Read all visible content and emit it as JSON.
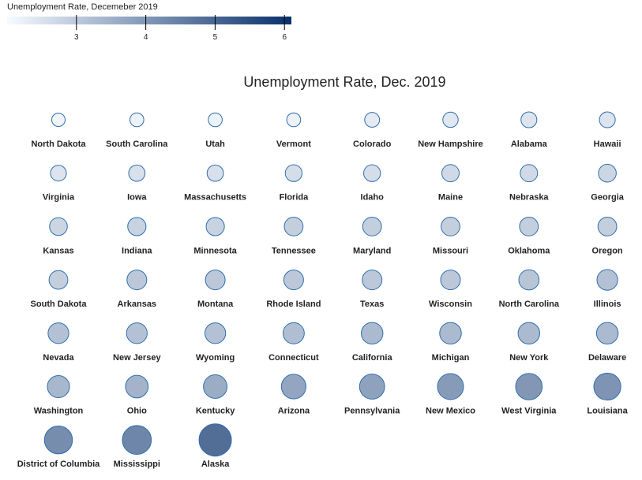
{
  "legend": {
    "title": "Unemployment Rate, Decemeber 2019",
    "ticks": [
      3,
      4,
      5,
      6
    ],
    "scale_min": 2.0,
    "scale_max": 6.1,
    "color_low": "#f7fbff",
    "color_high": "#08306b"
  },
  "chart_data": {
    "type": "scatter",
    "title": "Unemployment Rate, Dec. 2019",
    "encoding": "circle size and fill color = unemployment rate (%)",
    "points": [
      {
        "state": "North Dakota",
        "rate": 2.2
      },
      {
        "state": "South Carolina",
        "rate": 2.3
      },
      {
        "state": "Utah",
        "rate": 2.3
      },
      {
        "state": "Vermont",
        "rate": 2.3
      },
      {
        "state": "Colorado",
        "rate": 2.5
      },
      {
        "state": "New Hampshire",
        "rate": 2.6
      },
      {
        "state": "Alabama",
        "rate": 2.7
      },
      {
        "state": "Hawaii",
        "rate": 2.7
      },
      {
        "state": "Virginia",
        "rate": 2.7
      },
      {
        "state": "Iowa",
        "rate": 2.8
      },
      {
        "state": "Massachusetts",
        "rate": 2.8
      },
      {
        "state": "Florida",
        "rate": 2.9
      },
      {
        "state": "Idaho",
        "rate": 2.9
      },
      {
        "state": "Maine",
        "rate": 3.0
      },
      {
        "state": "Nebraska",
        "rate": 3.0
      },
      {
        "state": "Georgia",
        "rate": 3.1
      },
      {
        "state": "Kansas",
        "rate": 3.1
      },
      {
        "state": "Indiana",
        "rate": 3.2
      },
      {
        "state": "Minnesota",
        "rate": 3.2
      },
      {
        "state": "Tennessee",
        "rate": 3.3
      },
      {
        "state": "Maryland",
        "rate": 3.3
      },
      {
        "state": "Missouri",
        "rate": 3.3
      },
      {
        "state": "Oklahoma",
        "rate": 3.3
      },
      {
        "state": "Oregon",
        "rate": 3.3
      },
      {
        "state": "South Dakota",
        "rate": 3.3
      },
      {
        "state": "Arkansas",
        "rate": 3.5
      },
      {
        "state": "Montana",
        "rate": 3.5
      },
      {
        "state": "Rhode Island",
        "rate": 3.5
      },
      {
        "state": "Texas",
        "rate": 3.5
      },
      {
        "state": "Wisconsin",
        "rate": 3.5
      },
      {
        "state": "North Carolina",
        "rate": 3.6
      },
      {
        "state": "Illinois",
        "rate": 3.7
      },
      {
        "state": "Nevada",
        "rate": 3.7
      },
      {
        "state": "New Jersey",
        "rate": 3.7
      },
      {
        "state": "Wyoming",
        "rate": 3.7
      },
      {
        "state": "Connecticut",
        "rate": 3.8
      },
      {
        "state": "California",
        "rate": 3.9
      },
      {
        "state": "Michigan",
        "rate": 3.9
      },
      {
        "state": "New York",
        "rate": 3.9
      },
      {
        "state": "Delaware",
        "rate": 3.9
      },
      {
        "state": "Washington",
        "rate": 4.0
      },
      {
        "state": "Ohio",
        "rate": 4.1
      },
      {
        "state": "Kentucky",
        "rate": 4.3
      },
      {
        "state": "Arizona",
        "rate": 4.5
      },
      {
        "state": "Pennsylvania",
        "rate": 4.6
      },
      {
        "state": "New Mexico",
        "rate": 4.8
      },
      {
        "state": "West Virginia",
        "rate": 4.9
      },
      {
        "state": "Louisiana",
        "rate": 5.0
      },
      {
        "state": "District of Columbia",
        "rate": 5.2
      },
      {
        "state": "Mississippi",
        "rate": 5.4
      },
      {
        "state": "Alaska",
        "rate": 6.1
      }
    ]
  }
}
